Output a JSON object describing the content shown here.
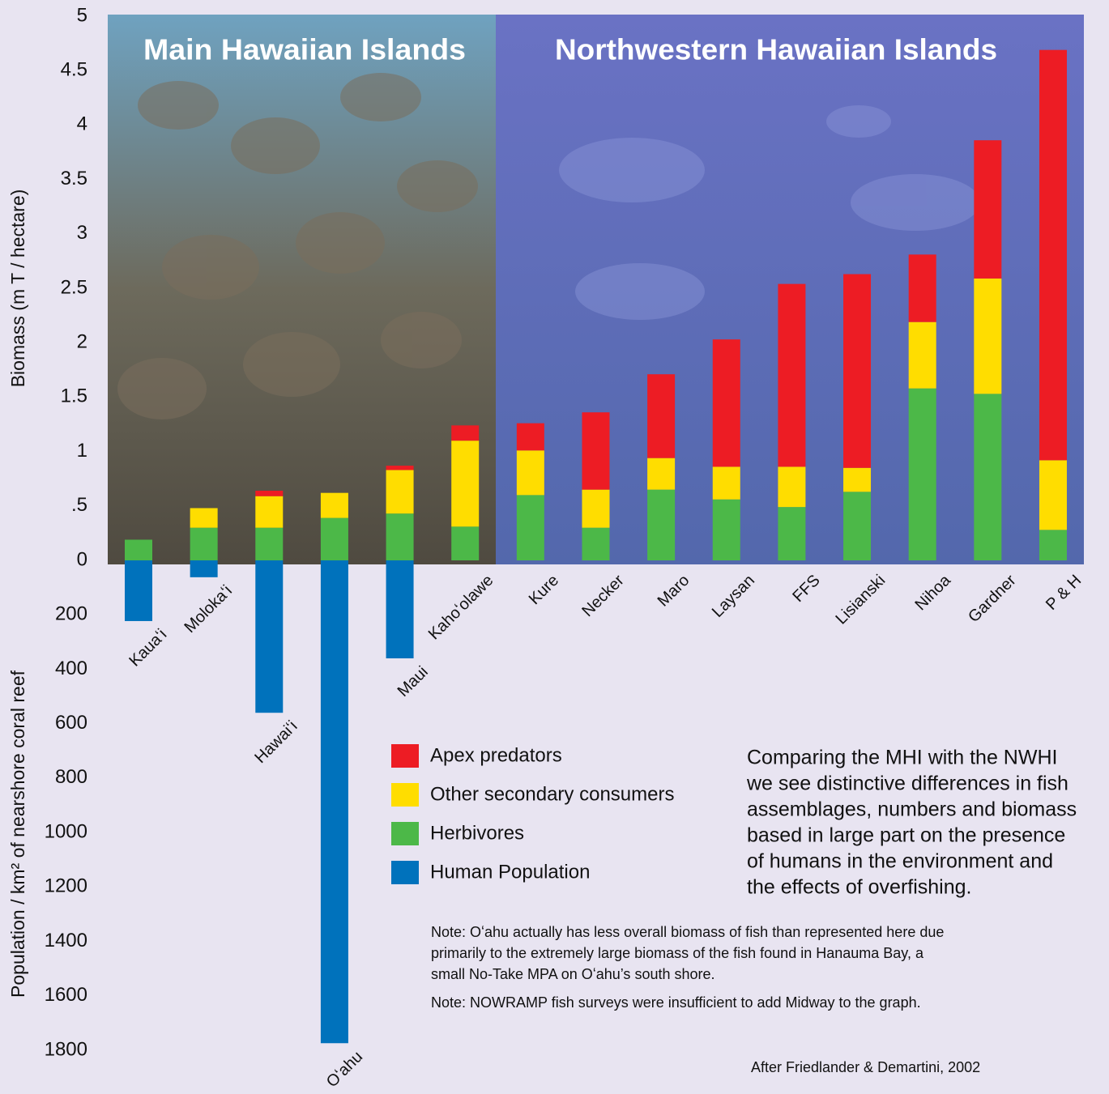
{
  "chart_data": {
    "type": "bar",
    "stacked": true,
    "panels": [
      {
        "title": "Main Hawaiian Islands"
      },
      {
        "title": "Northwestern Hawaiian Islands"
      }
    ],
    "y_label": "Biomass (m T / hectare)",
    "y2_label": "Population / km² of nearshore coral reef",
    "categories": [
      "Kauaʻi",
      "Molokaʻi",
      "Hawaiʻi",
      "Oʻahu",
      "Maui",
      "Kahoʻolawe",
      "Kure",
      "Necker",
      "Maro",
      "Laysan",
      "FFS",
      "Lisianski",
      "Nihoa",
      "Gardner",
      "P & H"
    ],
    "series": [
      {
        "name": "Apex predators",
        "color": "#ed1c24",
        "values": [
          0,
          0,
          0.05,
          0,
          0.04,
          0.14,
          0.25,
          0.71,
          0.77,
          1.17,
          1.68,
          1.78,
          0.62,
          1.27,
          3.77
        ]
      },
      {
        "name": "Other secondary consumers",
        "color": "#ffdd00",
        "values": [
          0,
          0.18,
          0.29,
          0.23,
          0.4,
          0.79,
          0.41,
          0.35,
          0.29,
          0.3,
          0.37,
          0.22,
          0.61,
          1.06,
          0.64
        ]
      },
      {
        "name": "Herbivores",
        "color": "#4cb848",
        "values": [
          0.19,
          0.3,
          0.3,
          0.39,
          0.43,
          0.31,
          0.6,
          0.3,
          0.65,
          0.56,
          0.49,
          0.63,
          1.58,
          1.53,
          0.28
        ]
      },
      {
        "name": "Human Population",
        "color": "#0072bc",
        "axis": "y2",
        "values": [
          223,
          62,
          560,
          1774,
          360,
          null,
          null,
          null,
          null,
          null,
          null,
          null,
          null,
          null,
          null
        ]
      }
    ],
    "ylim": [
      0,
      5
    ],
    "yticks": [
      0,
      {
        "value": 0.5,
        "label": ".5"
      },
      1,
      1.5,
      2,
      2.5,
      3,
      3.5,
      4,
      4.5,
      5
    ],
    "y2lim": [
      0,
      1800
    ],
    "y2ticks": [
      200,
      400,
      600,
      800,
      1000,
      1200,
      1400,
      1600,
      1800
    ],
    "description": [
      "Comparing the MHI with the NWHI",
      "we see distinctive differences in fish",
      "assemblages, numbers and biomass",
      "based in large part on the presence",
      "of humans in the environment and",
      "the effects of overfishing."
    ],
    "notes": [
      [
        "Note: Oʻahu actually has less overall biomass of fish than represented here due",
        "primarily to the extremely large biomass of the fish found in Hanauma Bay, a",
        "small No-Take MPA on Oʻahu’s south shore."
      ],
      [
        "Note: NOWRAMP fish surveys were insufficient to add Midway to the graph."
      ]
    ],
    "source": "After Friedlander & Demartini, 2002"
  }
}
